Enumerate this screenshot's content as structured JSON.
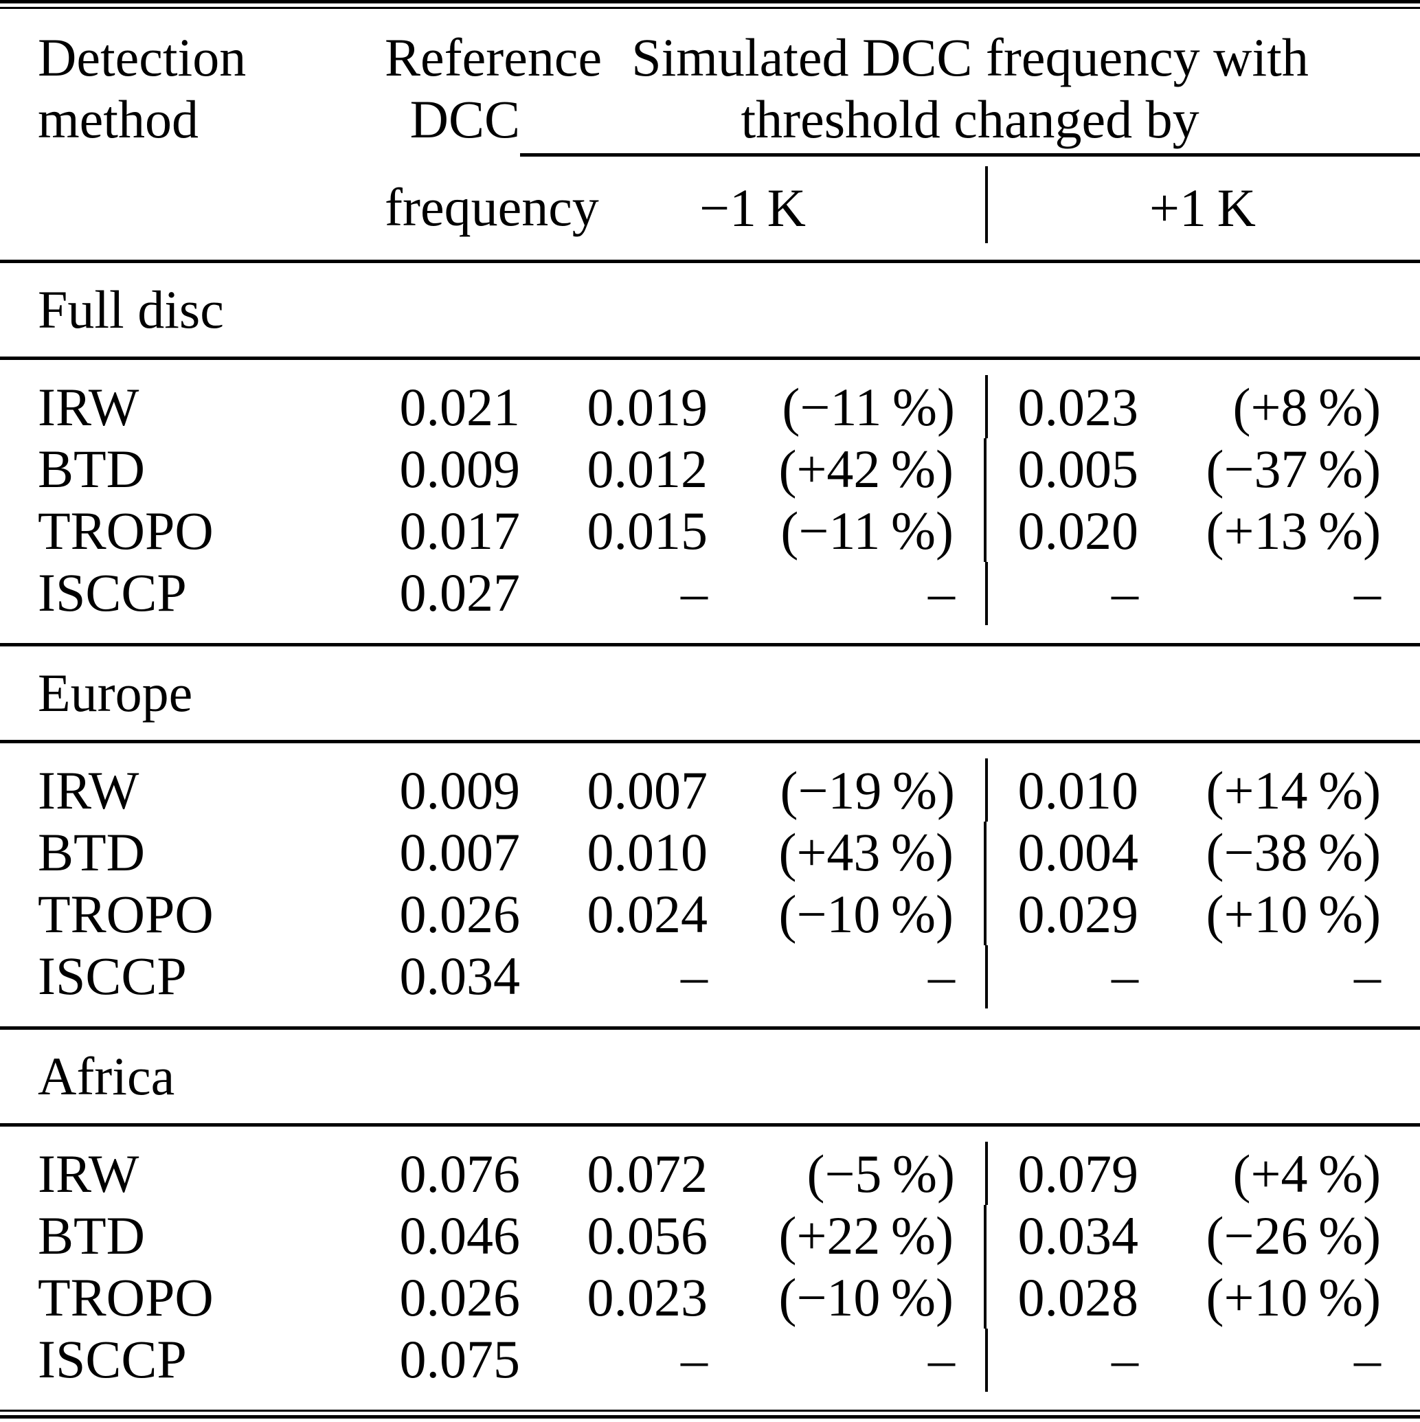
{
  "header": {
    "method_line1": "Detection",
    "method_line2": "method",
    "ref_line1": "Reference",
    "ref_line2": "DCC",
    "ref_line3": "frequency",
    "sim_line1": "Simulated DCC frequency with",
    "sim_line2": "threshold changed by",
    "minus_1k": "−1 K",
    "plus_1k": "+1 K"
  },
  "sections": [
    {
      "title": "Full disc",
      "rows": [
        {
          "method": "IRW",
          "ref": "0.021",
          "m1k": "0.019",
          "m1k_pct": "(−11 %)",
          "p1k": "0.023",
          "p1k_pct": "(+8 %)"
        },
        {
          "method": "BTD",
          "ref": "0.009",
          "m1k": "0.012",
          "m1k_pct": "(+42 %)",
          "p1k": "0.005",
          "p1k_pct": "(−37 %)"
        },
        {
          "method": "TROPO",
          "ref": "0.017",
          "m1k": "0.015",
          "m1k_pct": "(−11 %)",
          "p1k": "0.020",
          "p1k_pct": "(+13 %)"
        },
        {
          "method": "ISCCP",
          "ref": "0.027",
          "m1k": "–",
          "m1k_pct": "–",
          "p1k": "–",
          "p1k_pct": "–"
        }
      ]
    },
    {
      "title": "Europe",
      "rows": [
        {
          "method": "IRW",
          "ref": "0.009",
          "m1k": "0.007",
          "m1k_pct": "(−19 %)",
          "p1k": "0.010",
          "p1k_pct": "(+14 %)"
        },
        {
          "method": "BTD",
          "ref": "0.007",
          "m1k": "0.010",
          "m1k_pct": "(+43 %)",
          "p1k": "0.004",
          "p1k_pct": "(−38 %)"
        },
        {
          "method": "TROPO",
          "ref": "0.026",
          "m1k": "0.024",
          "m1k_pct": "(−10 %)",
          "p1k": "0.029",
          "p1k_pct": "(+10 %)"
        },
        {
          "method": "ISCCP",
          "ref": "0.034",
          "m1k": "–",
          "m1k_pct": "–",
          "p1k": "–",
          "p1k_pct": "–"
        }
      ]
    },
    {
      "title": "Africa",
      "rows": [
        {
          "method": "IRW",
          "ref": "0.076",
          "m1k": "0.072",
          "m1k_pct": "(−5 %)",
          "p1k": "0.079",
          "p1k_pct": "(+4 %)"
        },
        {
          "method": "BTD",
          "ref": "0.046",
          "m1k": "0.056",
          "m1k_pct": "(+22 %)",
          "p1k": "0.034",
          "p1k_pct": "(−26 %)"
        },
        {
          "method": "TROPO",
          "ref": "0.026",
          "m1k": "0.023",
          "m1k_pct": "(−10 %)",
          "p1k": "0.028",
          "p1k_pct": "(+10 %)"
        },
        {
          "method": "ISCCP",
          "ref": "0.075",
          "m1k": "–",
          "m1k_pct": "–",
          "p1k": "–",
          "p1k_pct": "–"
        }
      ]
    }
  ]
}
